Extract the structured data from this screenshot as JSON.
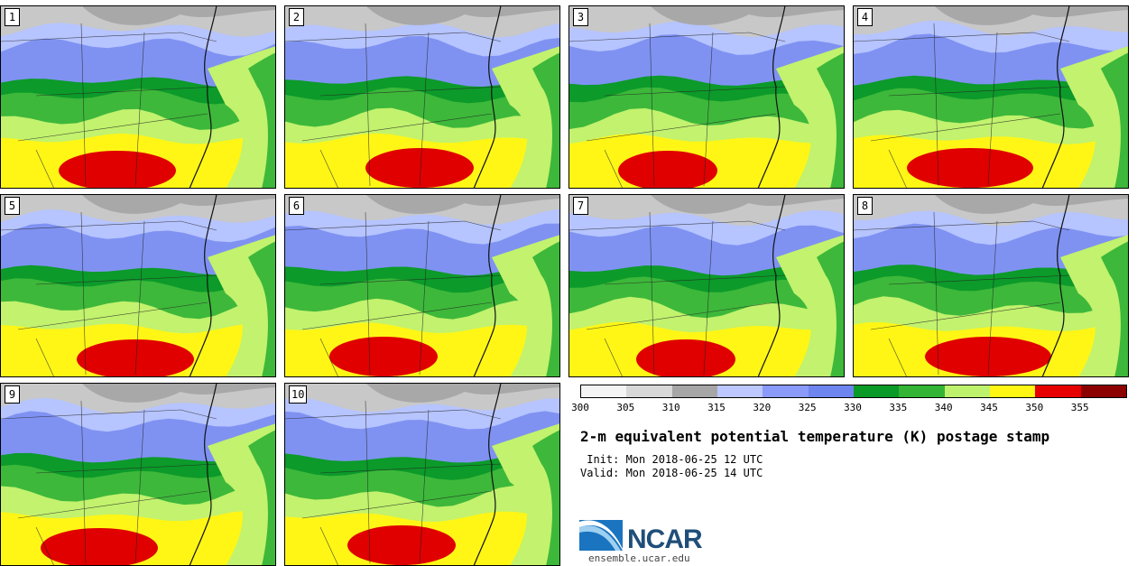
{
  "title": "2-m equivalent potential temperature (K) postage stamp",
  "init_text": " Init: Mon 2018-06-25 12 UTC",
  "valid_text": "Valid: Mon 2018-06-25 14 UTC",
  "site": "ensemble.ucar.edu",
  "logo_text": "NCAR",
  "members": [
    "1",
    "2",
    "3",
    "4",
    "5",
    "6",
    "7",
    "8",
    "9",
    "10"
  ],
  "legend": {
    "ticks": [
      "300",
      "305",
      "310",
      "315",
      "320",
      "325",
      "330",
      "335",
      "340",
      "345",
      "350",
      "355"
    ],
    "colors": [
      "#f4f4f4",
      "#d8d8d8",
      "#a6a6a6",
      "#bcc8ff",
      "#8a9af8",
      "#6e84ee",
      "#0a9a28",
      "#34b434",
      "#bef26c",
      "#fff614",
      "#e60000",
      "#8c0000"
    ]
  },
  "colors": {
    "coolgray": "#a8a8a8",
    "lightblue": "#b6c4ff",
    "blue": "#7f92f2",
    "darkgreen": "#0c9a2a",
    "green": "#3db83a",
    "lightgreen": "#c2f26e",
    "yellow": "#fff616",
    "red": "#e00000"
  }
}
